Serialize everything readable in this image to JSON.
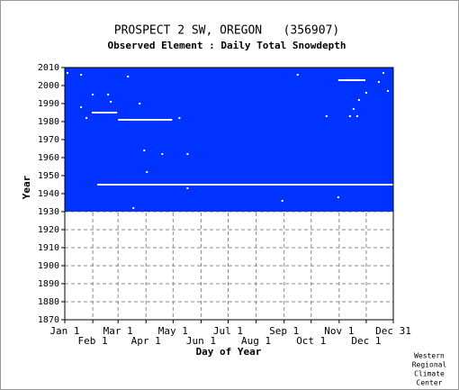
{
  "chart_data": {
    "type": "coverage",
    "title": "PROSPECT 2 SW, OREGON   (356907)",
    "subtitle": "Observed Element : Daily Total Snowdepth",
    "x_label": "Day of Year",
    "y_label": "Year",
    "credit": [
      "Western",
      "Regional",
      "Climate",
      "Center"
    ],
    "color": "#0033ff",
    "gap_color": "#ffffff",
    "grid": true,
    "xlim": [
      1,
      365
    ],
    "ylim": [
      1870,
      2010
    ],
    "xticks": [
      {
        "value": 1,
        "label": "Jan 1"
      },
      {
        "value": 32,
        "label": "Feb 1"
      },
      {
        "value": 60,
        "label": "Mar 1"
      },
      {
        "value": 91,
        "label": "Apr 1"
      },
      {
        "value": 121,
        "label": "May 1"
      },
      {
        "value": 152,
        "label": "Jun 1"
      },
      {
        "value": 182,
        "label": "Jul 1"
      },
      {
        "value": 213,
        "label": "Aug 1"
      },
      {
        "value": 244,
        "label": "Sep 1"
      },
      {
        "value": 274,
        "label": "Oct 1"
      },
      {
        "value": 305,
        "label": "Nov 1"
      },
      {
        "value": 335,
        "label": "Dec 1"
      },
      {
        "value": 365,
        "label": "Dec 31"
      }
    ],
    "yticks": [
      1870,
      1880,
      1890,
      1900,
      1910,
      1920,
      1930,
      1940,
      1950,
      1960,
      1970,
      1980,
      1990,
      2000,
      2010
    ],
    "coverage": {
      "start_year": 1930,
      "end_year": 2010
    },
    "missing_spans": [
      {
        "year": 1945,
        "start_day": 37,
        "end_day": 365
      },
      {
        "year": 1985,
        "start_day": 31,
        "end_day": 59
      },
      {
        "year": 1981,
        "start_day": 60,
        "end_day": 120
      },
      {
        "year": 2003,
        "start_day": 304,
        "end_day": 334
      }
    ],
    "missing_days": [
      {
        "day": 4,
        "year": 2007
      },
      {
        "day": 19,
        "year": 2006
      },
      {
        "day": 32,
        "year": 1995
      },
      {
        "day": 19,
        "year": 1988
      },
      {
        "day": 25,
        "year": 1982
      },
      {
        "day": 49,
        "year": 1995
      },
      {
        "day": 52,
        "year": 1991
      },
      {
        "day": 71,
        "year": 2005
      },
      {
        "day": 84,
        "year": 1990
      },
      {
        "day": 128,
        "year": 1982
      },
      {
        "day": 89,
        "year": 1964
      },
      {
        "day": 92,
        "year": 1952
      },
      {
        "day": 109,
        "year": 1962
      },
      {
        "day": 137,
        "year": 1962
      },
      {
        "day": 137,
        "year": 1943
      },
      {
        "day": 77,
        "year": 1932
      },
      {
        "day": 242,
        "year": 1936
      },
      {
        "day": 259,
        "year": 2006
      },
      {
        "day": 291,
        "year": 1983
      },
      {
        "day": 304,
        "year": 1938
      },
      {
        "day": 317,
        "year": 1983
      },
      {
        "day": 321,
        "year": 1987
      },
      {
        "day": 325,
        "year": 1983
      },
      {
        "day": 327,
        "year": 1992
      },
      {
        "day": 335,
        "year": 1996
      },
      {
        "day": 349,
        "year": 2002
      },
      {
        "day": 354,
        "year": 2007
      },
      {
        "day": 359,
        "year": 1997
      }
    ]
  }
}
